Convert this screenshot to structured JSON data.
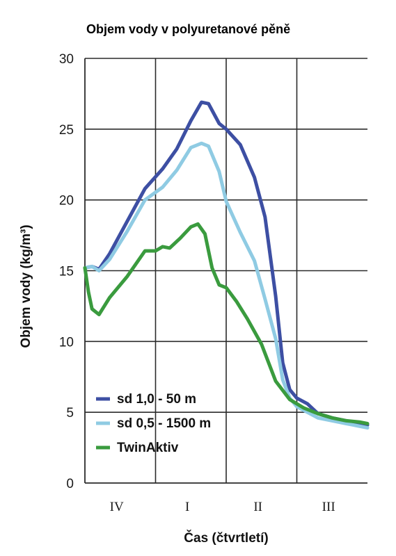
{
  "chart_data": {
    "type": "line",
    "title": "Objem vody v polyuretanové pěně",
    "xlabel": "Čas (čtvrtletí)",
    "ylabel": "Objem vody (kg/m³)",
    "ylim": [
      0,
      30
    ],
    "yticks": [
      0,
      5,
      10,
      15,
      20,
      25,
      30
    ],
    "categories": [
      "IV",
      "I",
      "II",
      "III"
    ],
    "xlim": [
      0,
      4
    ],
    "grid": true,
    "legend_position": "bottom-left",
    "series": [
      {
        "name": "sd 1,0 - 50 m",
        "color": "#3d4fa3",
        "x": [
          0,
          0.1,
          0.2,
          0.35,
          0.6,
          0.85,
          1.1,
          1.3,
          1.5,
          1.65,
          1.75,
          1.9,
          2.0,
          2.2,
          2.4,
          2.55,
          2.7,
          2.8,
          2.9,
          3.0,
          3.15,
          3.3,
          3.5,
          3.7,
          3.9,
          4.0
        ],
        "y": [
          15.2,
          15.3,
          15.1,
          16.2,
          18.5,
          20.8,
          22.2,
          23.6,
          25.6,
          26.9,
          26.8,
          25.4,
          25.0,
          23.9,
          21.6,
          18.8,
          13.2,
          8.5,
          6.6,
          6.0,
          5.6,
          4.9,
          4.6,
          4.4,
          4.2,
          4.1
        ]
      },
      {
        "name": "sd 0,5 - 1500 m",
        "color": "#8fcbe3",
        "x": [
          0,
          0.1,
          0.2,
          0.35,
          0.6,
          0.85,
          1.1,
          1.3,
          1.5,
          1.65,
          1.75,
          1.9,
          2.0,
          2.2,
          2.4,
          2.55,
          2.7,
          2.8,
          2.9,
          3.0,
          3.15,
          3.3,
          3.5,
          3.7,
          3.9,
          4.0
        ],
        "y": [
          15.2,
          15.3,
          15.0,
          15.8,
          17.8,
          20.0,
          20.9,
          22.1,
          23.7,
          24.0,
          23.8,
          22.0,
          19.9,
          17.7,
          15.7,
          13.0,
          10.2,
          7.3,
          6.0,
          5.4,
          5.0,
          4.6,
          4.4,
          4.2,
          4.0,
          3.9
        ]
      },
      {
        "name": "TwinAktiv",
        "color": "#3a9b3e",
        "x": [
          0,
          0.05,
          0.1,
          0.2,
          0.35,
          0.6,
          0.85,
          1.0,
          1.1,
          1.2,
          1.35,
          1.5,
          1.6,
          1.7,
          1.8,
          1.9,
          2.0,
          2.15,
          2.3,
          2.5,
          2.7,
          2.9,
          3.1,
          3.3,
          3.5,
          3.7,
          3.9,
          4.0
        ],
        "y": [
          15.2,
          13.5,
          12.3,
          11.9,
          13.1,
          14.6,
          16.4,
          16.4,
          16.7,
          16.6,
          17.3,
          18.1,
          18.3,
          17.6,
          15.2,
          14.0,
          13.8,
          12.8,
          11.6,
          9.8,
          7.2,
          5.9,
          5.3,
          4.9,
          4.6,
          4.4,
          4.3,
          4.2
        ]
      }
    ]
  }
}
